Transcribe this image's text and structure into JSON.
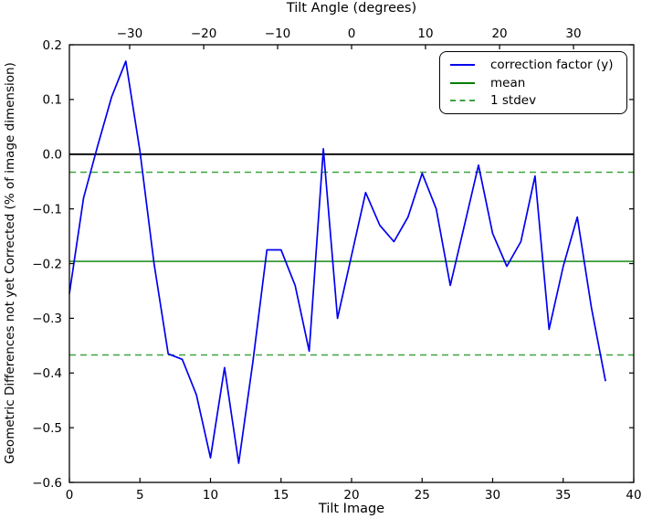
{
  "chart_data": {
    "type": "line",
    "xlabel": "Tilt Image",
    "ylabel": "Geometric Differences not yet Corrected (% of image dimension)",
    "xlim": [
      0,
      40
    ],
    "ylim": [
      -0.6,
      0.2
    ],
    "grid": false,
    "background_color": "#ffffff",
    "x_ticks": {
      "values": [
        0,
        5,
        10,
        15,
        20,
        25,
        30,
        35,
        40
      ],
      "labels": [
        "0",
        "5",
        "10",
        "15",
        "20",
        "25",
        "30",
        "35",
        "40"
      ]
    },
    "y_ticks": {
      "values": [
        0.2,
        0.1,
        0.0,
        -0.1,
        -0.2,
        -0.3,
        -0.4,
        -0.5,
        -0.6
      ],
      "labels": [
        "0.2",
        "0.1",
        "0.0",
        "−0.1",
        "−0.2",
        "−0.3",
        "−0.4",
        "−0.5",
        "−0.6"
      ]
    },
    "top_axis": {
      "title": "Tilt Angle (degrees)",
      "tick_positions": [
        4.27,
        9.52,
        14.76,
        20.0,
        25.24,
        30.49,
        35.73
      ],
      "tick_labels": [
        "−30",
        "−20",
        "−10",
        "0",
        "10",
        "20",
        "30"
      ]
    },
    "series": {
      "name": "correction factor (y)",
      "color": "#0000f0",
      "x": [
        0,
        1,
        2,
        3,
        4,
        5,
        6,
        7,
        8,
        9,
        10,
        11,
        12,
        13,
        14,
        15,
        16,
        17,
        18,
        19,
        20,
        21,
        22,
        23,
        24,
        25,
        26,
        27,
        28,
        29,
        30,
        31,
        32,
        33,
        34,
        35,
        36,
        37,
        38
      ],
      "y": [
        -0.255,
        -0.08,
        0.015,
        0.105,
        0.17,
        0.005,
        -0.2,
        -0.365,
        -0.375,
        -0.44,
        -0.555,
        -0.39,
        -0.565,
        -0.38,
        -0.175,
        -0.175,
        -0.24,
        -0.36,
        0.01,
        -0.3,
        -0.185,
        -0.07,
        -0.13,
        -0.16,
        -0.115,
        -0.035,
        -0.1,
        -0.24,
        -0.13,
        -0.02,
        -0.145,
        -0.205,
        -0.16,
        -0.04,
        -0.32,
        -0.205,
        -0.115,
        -0.28,
        -0.415
      ]
    },
    "reference_lines": [
      {
        "name": "zero",
        "y": 0.0,
        "color": "#000000",
        "style": "solid"
      },
      {
        "name": "mean",
        "y": -0.196,
        "color": "#007d00",
        "style": "solid"
      },
      {
        "name": "stdev-upper",
        "y": -0.033,
        "color": "#3fa33f",
        "style": "dashed"
      },
      {
        "name": "stdev-lower",
        "y": -0.367,
        "color": "#3fa33f",
        "style": "dashed"
      }
    ],
    "legend": {
      "position": "upper right",
      "entries": [
        {
          "label": "correction factor (y)",
          "color": "#0000f0",
          "style": "solid"
        },
        {
          "label": "mean",
          "color": "#007d00",
          "style": "solid"
        },
        {
          "label": "1 stdev",
          "color": "#3fa33f",
          "style": "dashed"
        }
      ]
    }
  }
}
